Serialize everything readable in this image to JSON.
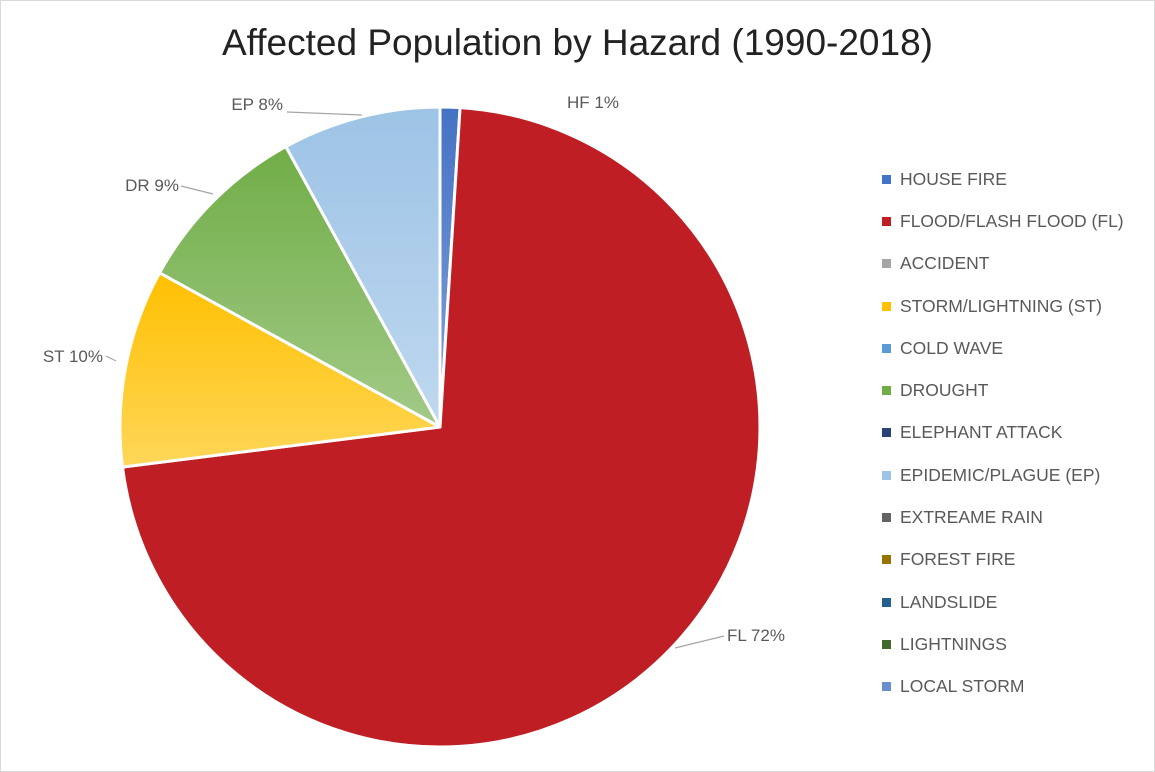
{
  "chart_data": {
    "type": "pie",
    "title": "Affected Population by Hazard (1990-2018)",
    "slices": [
      {
        "name": "HOUSE FIRE",
        "label": "HF 1%",
        "value": 1,
        "color": "#4472c4"
      },
      {
        "name": "FLOOD/FLASH FLOOD (FL)",
        "label": "FL 72%",
        "value": 72,
        "color": "#be1e24"
      },
      {
        "name": "STORM/LIGHTNING (ST)",
        "label": "ST 10%",
        "value": 10,
        "color": "#ffc000"
      },
      {
        "name": "DROUGHT",
        "label": "DR 9%",
        "value": 9,
        "color": "#70ad47"
      },
      {
        "name": "EPIDEMIC/PLAGUE (EP)",
        "label": "EP 8%",
        "value": 8,
        "color": "#9dc3e6"
      }
    ],
    "legend": {
      "position": "right",
      "items": [
        {
          "label": "HOUSE FIRE",
          "color": "#4472c4"
        },
        {
          "label": "FLOOD/FLASH FLOOD (FL)",
          "color": "#be1e24"
        },
        {
          "label": "ACCIDENT",
          "color": "#a5a5a5"
        },
        {
          "label": "STORM/LIGHTNING (ST)",
          "color": "#ffc000"
        },
        {
          "label": "COLD WAVE",
          "color": "#5b9bd5"
        },
        {
          "label": "DROUGHT",
          "color": "#70ad47"
        },
        {
          "label": "ELEPHANT ATTACK",
          "color": "#264478"
        },
        {
          "label": "EPIDEMIC/PLAGUE (EP)",
          "color": "#9dc3e6"
        },
        {
          "label": "EXTREAME RAIN",
          "color": "#636363"
        },
        {
          "label": "FOREST FIRE",
          "color": "#997300"
        },
        {
          "label": "LANDSLIDE",
          "color": "#255e91"
        },
        {
          "label": "LIGHTNINGS",
          "color": "#43682b"
        },
        {
          "label": "LOCAL STORM",
          "color": "#698ed0"
        }
      ]
    }
  }
}
